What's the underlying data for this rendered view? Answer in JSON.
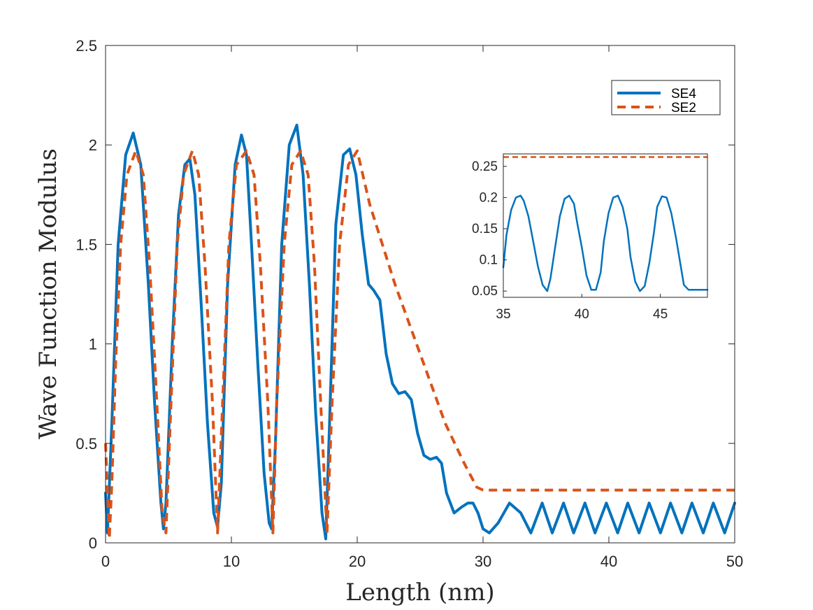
{
  "colors": {
    "se4": "#0072BD",
    "se2": "#D95319",
    "axis": "#262626"
  },
  "chart_data": [
    {
      "type": "line",
      "title": "",
      "xlabel": "Length (nm)",
      "ylabel": "Wave Function Modulus",
      "xlim": [
        0,
        50
      ],
      "ylim": [
        0,
        2.5
      ],
      "xticks": [
        0,
        10,
        20,
        30,
        40,
        50
      ],
      "xtick_labels": [
        "0",
        "10",
        "20",
        "30",
        "40",
        "50"
      ],
      "yticks": [
        0,
        0.5,
        1,
        1.5,
        2,
        2.5
      ],
      "ytick_labels": [
        "0",
        "0.5",
        "1",
        "1.5",
        "2",
        "2.5"
      ],
      "grid": false,
      "legend": {
        "placement": "top-right",
        "entries": [
          "SE4",
          "SE2"
        ]
      },
      "series": [
        {
          "name": "SE4",
          "style": "solid",
          "x": [
            0,
            0.15,
            0.5,
            1.0,
            1.6,
            2.2,
            2.8,
            3.4,
            3.9,
            4.4,
            4.6,
            4.8,
            5.3,
            5.8,
            6.3,
            6.7,
            7.1,
            7.6,
            8.1,
            8.6,
            8.9,
            9.2,
            9.7,
            10.3,
            10.8,
            11.2,
            11.6,
            12.1,
            12.6,
            13.0,
            13.2,
            13.5,
            14.0,
            14.6,
            15.2,
            15.7,
            16.2,
            16.7,
            17.2,
            17.5,
            17.8,
            18.3,
            18.9,
            19.4,
            19.9,
            20.4,
            20.9,
            21.3,
            21.8,
            22.3,
            22.8,
            23.3,
            23.8,
            24.3,
            24.8,
            25.3,
            25.8,
            26.3,
            26.7,
            27.1,
            27.7,
            28.3,
            28.8,
            29.2,
            29.6,
            30.0,
            30.5,
            31.2,
            32.1,
            33.0,
            33.8,
            34.7,
            35.5,
            36.4,
            37.2,
            38.1,
            38.9,
            39.8,
            40.7,
            41.5,
            42.4,
            43.2,
            44.1,
            44.9,
            45.8,
            46.6,
            47.5,
            48.3,
            49.2,
            50.0
          ],
          "y": [
            0.25,
            0.05,
            0.6,
            1.5,
            1.95,
            2.06,
            1.9,
            1.3,
            0.7,
            0.2,
            0.07,
            0.2,
            1.0,
            1.65,
            1.9,
            1.93,
            1.75,
            1.2,
            0.6,
            0.15,
            0.08,
            0.3,
            1.3,
            1.9,
            2.05,
            1.95,
            1.5,
            0.9,
            0.35,
            0.1,
            0.07,
            0.5,
            1.5,
            2.0,
            2.1,
            1.85,
            1.3,
            0.65,
            0.15,
            0.02,
            0.6,
            1.6,
            1.95,
            1.98,
            1.85,
            1.55,
            1.3,
            1.27,
            1.22,
            0.95,
            0.8,
            0.75,
            0.76,
            0.72,
            0.55,
            0.44,
            0.42,
            0.43,
            0.4,
            0.25,
            0.15,
            0.18,
            0.2,
            0.2,
            0.15,
            0.07,
            0.05,
            0.1,
            0.2,
            0.15,
            0.05,
            0.2,
            0.05,
            0.2,
            0.05,
            0.2,
            0.05,
            0.2,
            0.05,
            0.2,
            0.05,
            0.2,
            0.05,
            0.2,
            0.05,
            0.2,
            0.05,
            0.2,
            0.05,
            0.2
          ]
        },
        {
          "name": "SE2",
          "style": "dashed",
          "x": [
            0,
            0.3,
            0.5,
            0.8,
            1.2,
            1.7,
            2.4,
            3.0,
            3.5,
            4.0,
            4.5,
            4.8,
            5.2,
            5.7,
            6.2,
            6.9,
            7.4,
            7.9,
            8.5,
            8.9,
            9.3,
            9.8,
            10.4,
            11.2,
            11.8,
            12.3,
            12.9,
            13.3,
            13.6,
            14.2,
            14.8,
            15.5,
            16.1,
            16.6,
            17.1,
            17.6,
            18.0,
            18.6,
            19.3,
            20.0,
            21.0,
            23.0,
            25.0,
            27.0,
            28.5,
            29.5,
            30.0,
            50.0
          ],
          "y": [
            0.5,
            0.02,
            0.3,
            0.9,
            1.5,
            1.85,
            1.97,
            1.85,
            1.4,
            0.8,
            0.15,
            0.05,
            0.7,
            1.5,
            1.85,
            1.97,
            1.85,
            1.4,
            0.7,
            0.05,
            0.7,
            1.5,
            1.9,
            1.97,
            1.85,
            1.4,
            0.7,
            0.05,
            0.7,
            1.5,
            1.9,
            1.97,
            1.85,
            1.4,
            0.7,
            0.05,
            0.7,
            1.5,
            1.9,
            1.97,
            1.7,
            1.3,
            0.95,
            0.6,
            0.4,
            0.28,
            0.265,
            0.265
          ]
        }
      ]
    },
    {
      "type": "line",
      "title": "",
      "xlabel": "",
      "ylabel": "",
      "xlim": [
        35,
        48
      ],
      "ylim": [
        0.04,
        0.27
      ],
      "xticks": [
        35,
        40,
        45
      ],
      "xtick_labels": [
        "35",
        "40",
        "45"
      ],
      "yticks": [
        0.05,
        0.1,
        0.15,
        0.2,
        0.25
      ],
      "ytick_labels": [
        "0.05",
        "0.1",
        "0.15",
        "0.2",
        "0.25"
      ],
      "grid": false,
      "series": [
        {
          "name": "SE4",
          "style": "solid",
          "x": [
            35.0,
            35.2,
            35.5,
            35.8,
            36.1,
            36.3,
            36.6,
            36.9,
            37.2,
            37.5,
            37.8,
            38.0,
            38.3,
            38.6,
            38.9,
            39.2,
            39.5,
            39.7,
            40.0,
            40.3,
            40.6,
            40.9,
            41.2,
            41.4,
            41.7,
            42.0,
            42.3,
            42.6,
            42.9,
            43.1,
            43.4,
            43.7,
            44.0,
            44.3,
            44.6,
            44.8,
            45.1,
            45.4,
            45.7,
            46.0,
            46.3,
            46.5,
            46.8,
            47.1,
            47.4,
            47.7,
            48.0
          ],
          "y": [
            0.088,
            0.14,
            0.18,
            0.2,
            0.203,
            0.195,
            0.17,
            0.13,
            0.09,
            0.06,
            0.05,
            0.07,
            0.12,
            0.17,
            0.198,
            0.203,
            0.19,
            0.16,
            0.12,
            0.075,
            0.052,
            0.052,
            0.08,
            0.13,
            0.175,
            0.2,
            0.203,
            0.185,
            0.15,
            0.105,
            0.065,
            0.05,
            0.058,
            0.095,
            0.145,
            0.185,
            0.202,
            0.2,
            0.175,
            0.135,
            0.09,
            0.06,
            0.052,
            0.052,
            0.052,
            0.052,
            0.052
          ]
        },
        {
          "name": "SE2",
          "style": "dashed",
          "x": [
            35.0,
            48.0
          ],
          "y": [
            0.265,
            0.265
          ]
        }
      ]
    }
  ]
}
